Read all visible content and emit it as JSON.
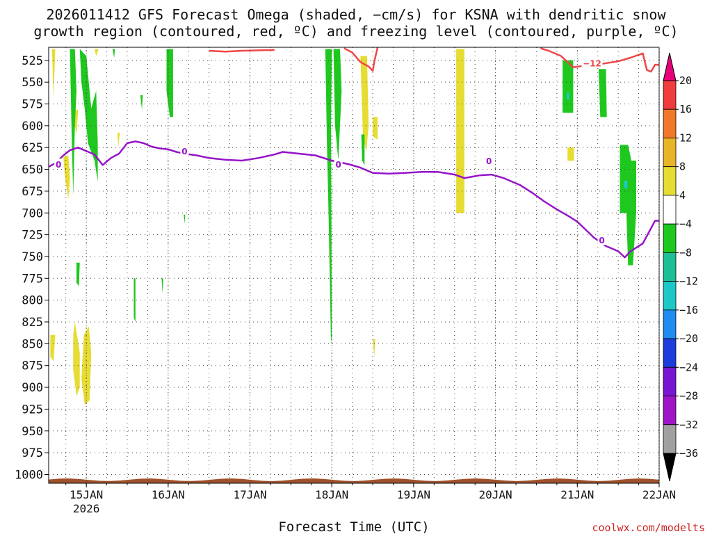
{
  "chart_data": {
    "type": "heatmap",
    "title_lines": [
      "2026011412 GFS Forecast Omega (shaded, −cm/s) for KSNA with dendritic snow",
      "growth region (contoured, red, ºC) and freezing level (contoured, purple, ºC)"
    ],
    "xlabel": "Forecast Time (UTC)",
    "credit": "coolwx.com/modelts",
    "x_range_days": [
      14.54,
      22.0
    ],
    "x_ticks": [
      {
        "day": 15,
        "label": "15JAN",
        "sub": "2026"
      },
      {
        "day": 16,
        "label": "16JAN",
        "sub": ""
      },
      {
        "day": 17,
        "label": "17JAN",
        "sub": ""
      },
      {
        "day": 18,
        "label": "18JAN",
        "sub": ""
      },
      {
        "day": 19,
        "label": "19JAN",
        "sub": ""
      },
      {
        "day": 20,
        "label": "20JAN",
        "sub": ""
      },
      {
        "day": 21,
        "label": "21JAN",
        "sub": ""
      },
      {
        "day": 22,
        "label": "22JAN",
        "sub": ""
      }
    ],
    "y_range_hPa": [
      1010,
      510
    ],
    "y_ticks": [
      525,
      550,
      575,
      600,
      625,
      650,
      675,
      700,
      725,
      750,
      775,
      800,
      825,
      850,
      875,
      900,
      925,
      950,
      975,
      1000
    ],
    "grid": true,
    "colorbar": {
      "ticks": [
        "20",
        "16",
        "12",
        "8",
        "4",
        "−4",
        "−8",
        "−12",
        "−16",
        "−20",
        "−24",
        "−28",
        "−32",
        "−36"
      ],
      "colors": [
        "#e8007a",
        "#f03c3c",
        "#f07828",
        "#e8b428",
        "#e6dc32",
        "#ffffff",
        "#1ec81e",
        "#1ebe96",
        "#1ec8c8",
        "#1e8cf0",
        "#1e3cdc",
        "#7814d2",
        "#a014c8",
        "#a0a0a0",
        "#000000"
      ]
    },
    "freezing_level": {
      "color": "#9614c8",
      "label": "0",
      "label_points": [
        [
          14.66,
          644
        ],
        [
          16.2,
          629
        ],
        [
          18.08,
          644
        ],
        [
          19.92,
          640
        ],
        [
          21.3,
          731
        ]
      ],
      "points": [
        [
          14.54,
          647
        ],
        [
          14.62,
          643
        ],
        [
          14.72,
          634
        ],
        [
          14.8,
          628
        ],
        [
          14.9,
          625
        ],
        [
          15.0,
          629
        ],
        [
          15.1,
          633
        ],
        [
          15.2,
          645
        ],
        [
          15.3,
          637
        ],
        [
          15.4,
          632
        ],
        [
          15.5,
          620
        ],
        [
          15.6,
          618
        ],
        [
          15.7,
          620
        ],
        [
          15.8,
          624
        ],
        [
          15.9,
          626
        ],
        [
          16.0,
          627
        ],
        [
          16.1,
          630
        ],
        [
          16.2,
          632
        ],
        [
          16.35,
          634
        ],
        [
          16.5,
          637
        ],
        [
          16.7,
          639
        ],
        [
          16.9,
          640
        ],
        [
          17.1,
          637
        ],
        [
          17.3,
          633
        ],
        [
          17.4,
          630
        ],
        [
          17.6,
          632
        ],
        [
          17.8,
          634
        ],
        [
          18.0,
          640
        ],
        [
          18.2,
          644
        ],
        [
          18.35,
          648
        ],
        [
          18.5,
          654
        ],
        [
          18.7,
          655
        ],
        [
          18.9,
          654
        ],
        [
          19.1,
          653
        ],
        [
          19.3,
          653
        ],
        [
          19.5,
          656
        ],
        [
          19.62,
          660
        ],
        [
          19.8,
          657
        ],
        [
          19.95,
          656
        ],
        [
          20.1,
          660
        ],
        [
          20.3,
          668
        ],
        [
          20.45,
          677
        ],
        [
          20.6,
          687
        ],
        [
          20.75,
          696
        ],
        [
          20.9,
          704
        ],
        [
          21.0,
          710
        ],
        [
          21.1,
          719
        ],
        [
          21.2,
          728
        ],
        [
          21.35,
          738
        ],
        [
          21.5,
          744
        ],
        [
          21.58,
          751
        ],
        [
          21.65,
          744
        ],
        [
          21.8,
          735
        ],
        [
          21.95,
          709
        ],
        [
          22.0,
          709
        ]
      ]
    },
    "dgz_contour": {
      "color": "#f04646",
      "label": "−12",
      "label_points": [
        [
          21.18,
          528
        ]
      ],
      "segments": [
        [
          [
            16.5,
            514
          ],
          [
            16.7,
            515
          ],
          [
            16.9,
            514
          ],
          [
            17.3,
            513
          ]
        ],
        [
          [
            18.15,
            511
          ],
          [
            18.25,
            516
          ],
          [
            18.35,
            527
          ],
          [
            18.45,
            532
          ],
          [
            18.5,
            537
          ],
          [
            18.52,
            526
          ],
          [
            18.56,
            510
          ]
        ],
        [
          [
            20.55,
            511
          ],
          [
            20.65,
            514
          ],
          [
            20.8,
            520
          ],
          [
            20.95,
            533
          ],
          [
            21.1,
            531
          ],
          [
            21.3,
            529
          ],
          [
            21.5,
            526
          ],
          [
            21.65,
            522
          ],
          [
            21.8,
            517
          ],
          [
            21.85,
            536
          ],
          [
            21.9,
            538
          ],
          [
            21.95,
            530
          ],
          [
            22.0,
            530
          ]
        ]
      ]
    },
    "omega_regions": [
      {
        "value": 4,
        "color": "#e6dc32",
        "points": [
          [
            14.72,
            636
          ],
          [
            14.78,
            634
          ],
          [
            14.8,
            660
          ],
          [
            14.78,
            684
          ],
          [
            14.74,
            660
          ]
        ]
      },
      {
        "value": 4,
        "color": "#e6dc32",
        "points": [
          [
            14.58,
            512
          ],
          [
            14.62,
            512
          ],
          [
            14.6,
            568
          ]
        ]
      },
      {
        "value": 4,
        "color": "#e6dc32",
        "points": [
          [
            14.82,
            582
          ],
          [
            14.9,
            582
          ],
          [
            14.88,
            610
          ]
        ]
      },
      {
        "value": 4,
        "color": "#e6dc32",
        "points": [
          [
            15.1,
            512
          ],
          [
            15.15,
            512
          ],
          [
            15.12,
            520
          ]
        ]
      },
      {
        "value": 4,
        "color": "#e6dc32",
        "points": [
          [
            15.38,
            608
          ],
          [
            15.41,
            608
          ],
          [
            15.39,
            625
          ]
        ]
      },
      {
        "value": 4,
        "color": "#e6dc32",
        "points": [
          [
            14.86,
            825
          ],
          [
            14.92,
            860
          ],
          [
            14.92,
            900
          ],
          [
            14.88,
            910
          ],
          [
            14.84,
            880
          ],
          [
            14.84,
            840
          ]
        ]
      },
      {
        "value": 4,
        "color": "#e6dc32",
        "points": [
          [
            14.97,
            840
          ],
          [
            15.03,
            830
          ],
          [
            15.06,
            860
          ],
          [
            15.04,
            915
          ],
          [
            14.98,
            920
          ],
          [
            14.94,
            890
          ]
        ]
      },
      {
        "value": 4,
        "color": "#e6dc32",
        "points": [
          [
            14.56,
            840
          ],
          [
            14.62,
            840
          ],
          [
            14.6,
            870
          ],
          [
            14.56,
            865
          ]
        ]
      },
      {
        "value": 4,
        "color": "#e6dc32",
        "points": [
          [
            18.35,
            520
          ],
          [
            18.43,
            520
          ],
          [
            18.45,
            600
          ],
          [
            18.42,
            630
          ],
          [
            18.38,
            610
          ]
        ]
      },
      {
        "value": 4,
        "color": "#e6dc32",
        "points": [
          [
            18.5,
            590
          ],
          [
            18.56,
            590
          ],
          [
            18.56,
            616
          ],
          [
            18.5,
            612
          ]
        ]
      },
      {
        "value": 4,
        "color": "#e6dc32",
        "points": [
          [
            19.52,
            512
          ],
          [
            19.62,
            512
          ],
          [
            19.62,
            700
          ],
          [
            19.52,
            700
          ]
        ]
      },
      {
        "value": 4,
        "color": "#e6dc32",
        "points": [
          [
            20.85,
            530
          ],
          [
            20.93,
            530
          ],
          [
            20.93,
            577
          ],
          [
            20.85,
            577
          ]
        ]
      },
      {
        "value": 4,
        "color": "#e6dc32",
        "points": [
          [
            20.88,
            625
          ],
          [
            20.96,
            625
          ],
          [
            20.96,
            640
          ],
          [
            20.88,
            640
          ]
        ]
      },
      {
        "value": 4,
        "color": "#e6dc32",
        "points": [
          [
            18.5,
            845
          ],
          [
            18.53,
            845
          ],
          [
            18.52,
            865
          ]
        ]
      },
      {
        "value": -4,
        "color": "#1ec81e",
        "points": [
          [
            14.8,
            512
          ],
          [
            14.86,
            512
          ],
          [
            14.88,
            560
          ],
          [
            14.86,
            600
          ],
          [
            14.84,
            680
          ],
          [
            14.82,
            610
          ]
        ]
      },
      {
        "value": -4,
        "color": "#1ec81e",
        "points": [
          [
            14.92,
            512
          ],
          [
            15.0,
            520
          ],
          [
            15.06,
            580
          ],
          [
            15.12,
            560
          ],
          [
            15.14,
            620
          ],
          [
            15.14,
            664
          ],
          [
            15.1,
            640
          ],
          [
            15.02,
            620
          ],
          [
            14.98,
            580
          ],
          [
            14.94,
            550
          ]
        ]
      },
      {
        "value": -4,
        "color": "#1ec81e",
        "points": [
          [
            15.32,
            512
          ],
          [
            15.35,
            512
          ],
          [
            15.34,
            522
          ]
        ]
      },
      {
        "value": -4,
        "color": "#1ec81e",
        "points": [
          [
            15.66,
            565
          ],
          [
            15.69,
            565
          ],
          [
            15.68,
            582
          ]
        ]
      },
      {
        "value": -4,
        "color": "#1ec81e",
        "points": [
          [
            15.98,
            512
          ],
          [
            16.06,
            512
          ],
          [
            16.06,
            590
          ],
          [
            16.02,
            590
          ],
          [
            15.98,
            560
          ]
        ]
      },
      {
        "value": -4,
        "color": "#1ec81e",
        "points": [
          [
            14.88,
            757
          ],
          [
            14.92,
            757
          ],
          [
            14.91,
            784
          ],
          [
            14.88,
            780
          ]
        ]
      },
      {
        "value": -4,
        "color": "#1ec81e",
        "points": [
          [
            15.58,
            775
          ],
          [
            15.6,
            775
          ],
          [
            15.6,
            825
          ],
          [
            15.58,
            820
          ]
        ]
      },
      {
        "value": -4,
        "color": "#1ec81e",
        "points": [
          [
            15.92,
            775
          ],
          [
            15.94,
            775
          ],
          [
            15.93,
            792
          ]
        ]
      },
      {
        "value": -4,
        "color": "#1ec81e",
        "points": [
          [
            16.19,
            702
          ],
          [
            16.21,
            702
          ],
          [
            16.2,
            712
          ]
        ]
      },
      {
        "value": -4,
        "color": "#1ec81e",
        "points": [
          [
            17.92,
            512
          ],
          [
            18.0,
            512
          ],
          [
            17.99,
            600
          ],
          [
            18.0,
            840
          ],
          [
            17.99,
            850
          ],
          [
            17.96,
            700
          ],
          [
            17.94,
            620
          ]
        ]
      },
      {
        "value": -4,
        "color": "#1ec81e",
        "points": [
          [
            18.02,
            512
          ],
          [
            18.1,
            512
          ],
          [
            18.12,
            560
          ],
          [
            18.08,
            640
          ],
          [
            18.04,
            600
          ]
        ]
      },
      {
        "value": -4,
        "color": "#1ec81e",
        "points": [
          [
            18.36,
            610
          ],
          [
            18.4,
            610
          ],
          [
            18.4,
            645
          ],
          [
            18.37,
            640
          ]
        ]
      },
      {
        "value": -4,
        "color": "#1ec81e",
        "points": [
          [
            20.82,
            525
          ],
          [
            20.95,
            525
          ],
          [
            20.95,
            585
          ],
          [
            20.82,
            585
          ]
        ]
      },
      {
        "value": -4,
        "color": "#1ec81e",
        "points": [
          [
            21.26,
            535
          ],
          [
            21.35,
            535
          ],
          [
            21.36,
            590
          ],
          [
            21.28,
            590
          ]
        ]
      },
      {
        "value": -4,
        "color": "#1ec81e",
        "points": [
          [
            21.52,
            622
          ],
          [
            21.62,
            622
          ],
          [
            21.66,
            640
          ],
          [
            21.72,
            640
          ],
          [
            21.72,
            700
          ],
          [
            21.68,
            760
          ],
          [
            21.62,
            760
          ],
          [
            21.6,
            700
          ],
          [
            21.52,
            700
          ]
        ]
      },
      {
        "value": -8,
        "color": "#1ec8c8",
        "points": [
          [
            20.87,
            562
          ],
          [
            20.9,
            562
          ],
          [
            20.9,
            570
          ],
          [
            20.87,
            570
          ]
        ]
      },
      {
        "value": -8,
        "color": "#1ec8c8",
        "points": [
          [
            21.57,
            663
          ],
          [
            21.61,
            663
          ],
          [
            21.61,
            672
          ],
          [
            21.57,
            672
          ]
        ]
      }
    ]
  }
}
